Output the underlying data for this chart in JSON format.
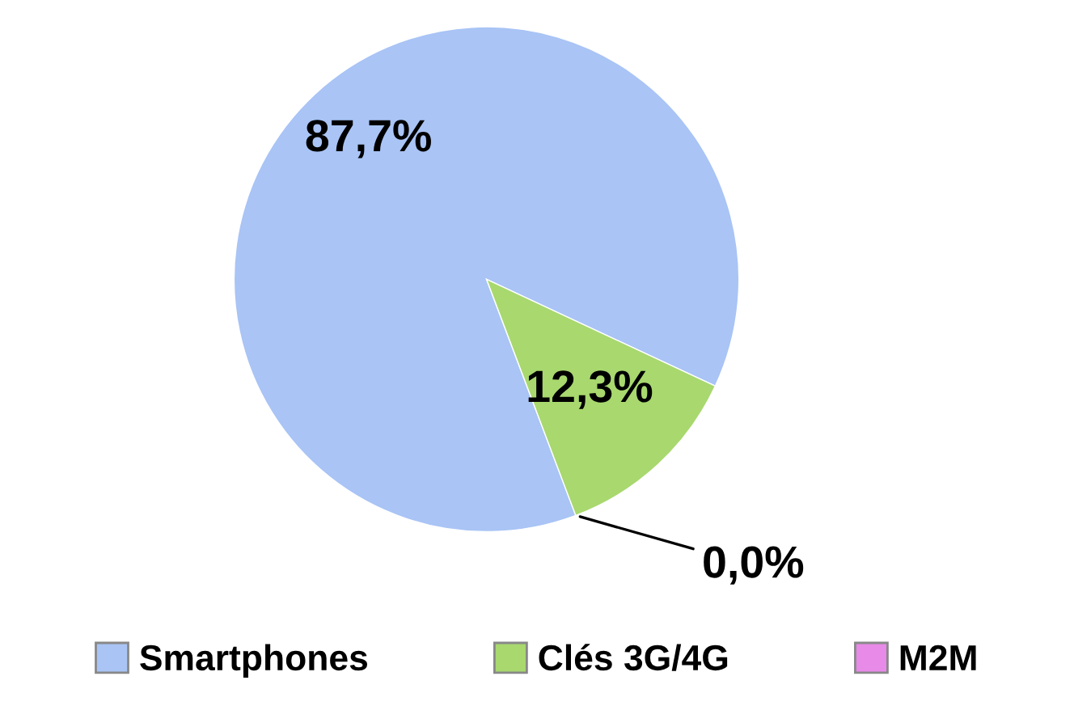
{
  "chart_data": {
    "type": "pie",
    "categories": [
      "Smartphones",
      "Clés 3G/4G",
      "M2M"
    ],
    "values": [
      87.7,
      12.3,
      0.0
    ],
    "colors": [
      "#a9c4f5",
      "#a8d86e",
      "#e88ae8"
    ],
    "value_labels": [
      "87,7%",
      "12,3%",
      "0,0%"
    ],
    "legend": "bottom"
  }
}
